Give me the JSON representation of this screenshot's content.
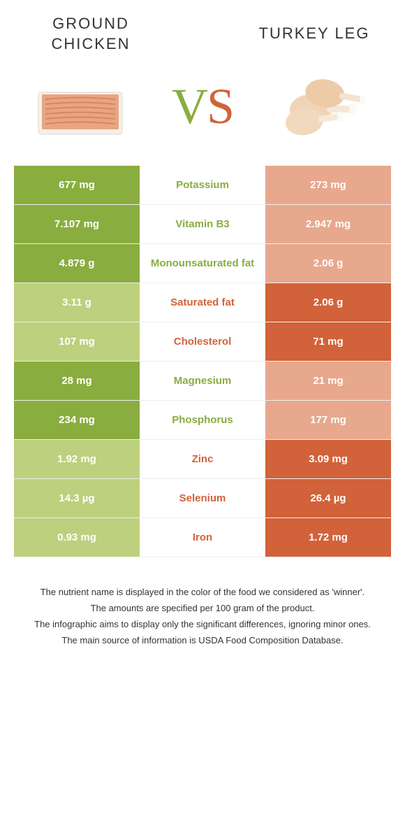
{
  "header": {
    "left_title_line1": "GROUND",
    "left_title_line2": "CHICKEN",
    "right_title": "TURKEY LEG",
    "vs_v": "V",
    "vs_s": "S"
  },
  "colors": {
    "left_winner": "#8aad3f",
    "left_loser": "#bdd07e",
    "right_winner": "#d2623a",
    "right_loser": "#e8a88d",
    "background": "#ffffff"
  },
  "table": {
    "rows": [
      {
        "left": "677 mg",
        "label": "Potassium",
        "right": "273 mg",
        "winner": "left"
      },
      {
        "left": "7.107 mg",
        "label": "Vitamin B3",
        "right": "2.947 mg",
        "winner": "left"
      },
      {
        "left": "4.879 g",
        "label": "Monounsaturated fat",
        "right": "2.06 g",
        "winner": "left"
      },
      {
        "left": "3.11 g",
        "label": "Saturated fat",
        "right": "2.06 g",
        "winner": "right"
      },
      {
        "left": "107 mg",
        "label": "Cholesterol",
        "right": "71 mg",
        "winner": "right"
      },
      {
        "left": "28 mg",
        "label": "Magnesium",
        "right": "21 mg",
        "winner": "left"
      },
      {
        "left": "234 mg",
        "label": "Phosphorus",
        "right": "177 mg",
        "winner": "left"
      },
      {
        "left": "1.92 mg",
        "label": "Zinc",
        "right": "3.09 mg",
        "winner": "right"
      },
      {
        "left": "14.3 µg",
        "label": "Selenium",
        "right": "26.4 µg",
        "winner": "right"
      },
      {
        "left": "0.93 mg",
        "label": "Iron",
        "right": "1.72 mg",
        "winner": "right"
      }
    ]
  },
  "footer": {
    "line1": "The nutrient name is displayed in the color of the food we considered as 'winner'.",
    "line2": "The amounts are specified per 100 gram of the product.",
    "line3": "The infographic aims to display only the significant differences, ignoring minor ones.",
    "line4": "The main source of information is USDA Food Composition Database."
  }
}
